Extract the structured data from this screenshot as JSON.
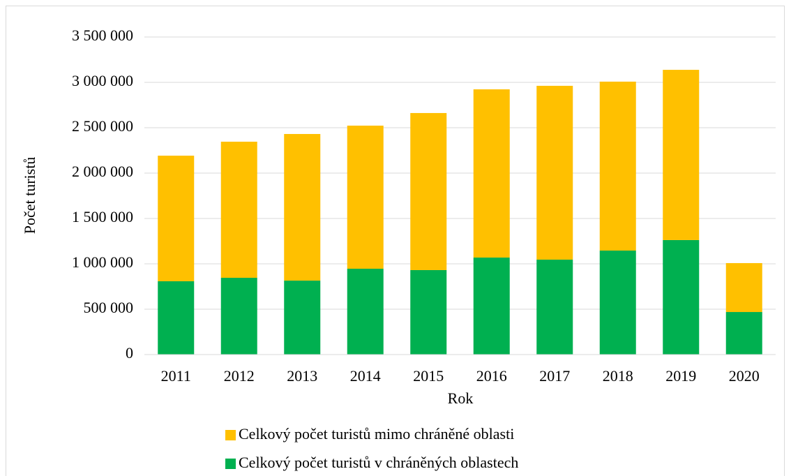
{
  "chart_data": {
    "type": "stacked_bar",
    "categories": [
      "2011",
      "2012",
      "2013",
      "2014",
      "2015",
      "2016",
      "2017",
      "2018",
      "2019",
      "2020"
    ],
    "series": [
      {
        "name": "Celkový počet turistů v chráněných oblastech",
        "color": "#00b050",
        "values": [
          808000,
          846000,
          815000,
          946000,
          931000,
          1069000,
          1046000,
          1146000,
          1262000,
          469000
        ]
      },
      {
        "name": "Celkový počet turistů mimo chráněné oblasti",
        "color": "#ffc000",
        "values": [
          1384000,
          1500000,
          1616000,
          1577000,
          1731000,
          1854000,
          1916000,
          1862000,
          1876000,
          539000
        ]
      }
    ],
    "xlabel": "Rok",
    "ylabel": "Počet turistů",
    "ylim": [
      0,
      3500000
    ],
    "yticks": [
      0,
      {
        "value": 500000,
        "label": "500 000"
      },
      {
        "value": 1000000,
        "label": "1 000 000"
      },
      {
        "value": 1500000,
        "label": "1 500 000"
      },
      {
        "value": 2000000,
        "label": "2 000 000"
      },
      {
        "value": 2500000,
        "label": "2 500 000"
      },
      {
        "value": 3000000,
        "label": "3 000 000"
      },
      {
        "value": 3500000,
        "label": "3 500 000"
      }
    ],
    "grid": true
  }
}
